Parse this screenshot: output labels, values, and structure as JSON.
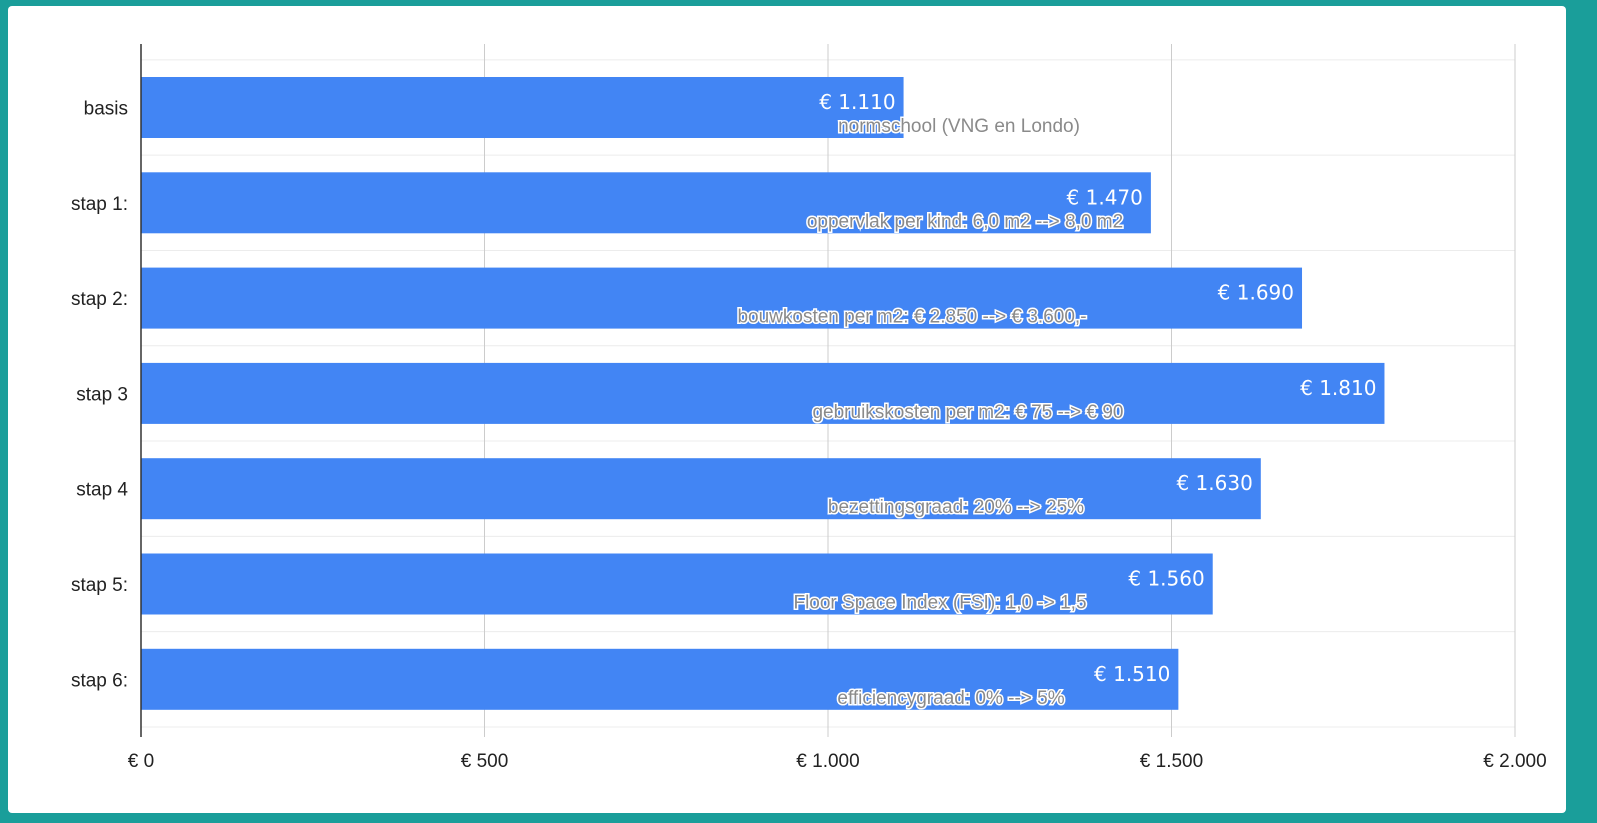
{
  "chart_data": {
    "type": "bar",
    "orientation": "horizontal",
    "categories": [
      "basis",
      "stap 1:",
      "stap 2:",
      "stap 3",
      "stap 4",
      "stap 5:",
      "stap 6:"
    ],
    "values": [
      1110,
      1470,
      1690,
      1810,
      1630,
      1560,
      1510
    ],
    "value_labels": [
      "€ 1.110",
      "€ 1.470",
      "€ 1.690",
      "€ 1.810",
      "€ 1.630",
      "€ 1.560",
      "€ 1.510"
    ],
    "annotations": [
      "normschool (VNG en Londo)",
      "oppervlak per kind: 6,0 m2 --> 8,0 m2",
      "bouwkosten per m2: € 2.850 --> € 3.600,-",
      "gebruikskosten per m2: € 75 --> € 90",
      "bezettingsgraad: 20% --> 25%",
      "Floor Space Index (FSI): 1,0 -> 1,5",
      "efficiencygraad: 0% --> 5%"
    ],
    "x_ticks": [
      0,
      500,
      1000,
      1500,
      2000
    ],
    "x_tick_labels": [
      "€ 0",
      "€ 500",
      "€ 1.000",
      "€ 1.500",
      "€ 2.000"
    ],
    "xlim": [
      0,
      2000
    ],
    "grid": true,
    "legend": "none",
    "title": "",
    "xlabel": "",
    "ylabel": "",
    "colors": {
      "bar": "#4285f4",
      "grid": "#cccccc",
      "axis": "#333333",
      "frame": "#1a9e9a"
    }
  }
}
